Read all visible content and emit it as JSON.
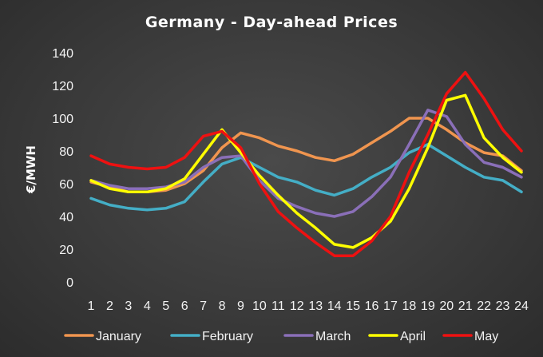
{
  "chart_data": {
    "type": "line",
    "title": "Germany - Day-ahead Prices",
    "ylabel": "€/MWH",
    "xlabel": "",
    "ylim": [
      0,
      140
    ],
    "yticks": [
      0,
      20,
      40,
      60,
      80,
      100,
      120,
      140
    ],
    "grid": false,
    "legend_position": "bottom",
    "categories": [
      "1",
      "2",
      "3",
      "4",
      "5",
      "6",
      "7",
      "8",
      "9",
      "10",
      "11",
      "12",
      "13",
      "14",
      "15",
      "16",
      "17",
      "18",
      "19",
      "20",
      "21",
      "22",
      "23",
      "24"
    ],
    "series": [
      {
        "name": "January",
        "color": "#f0954f",
        "values": [
          61,
          58,
          55,
          55,
          56,
          60,
          68,
          82,
          91,
          88,
          83,
          80,
          76,
          74,
          78,
          85,
          92,
          100,
          100,
          93,
          85,
          79,
          77,
          68
        ]
      },
      {
        "name": "February",
        "color": "#44aec6",
        "values": [
          51,
          47,
          45,
          44,
          45,
          49,
          61,
          72,
          76,
          70,
          64,
          61,
          56,
          53,
          57,
          64,
          70,
          79,
          84,
          77,
          70,
          64,
          62,
          55
        ]
      },
      {
        "name": "March",
        "color": "#8a6fb8",
        "values": [
          62,
          59,
          57,
          57,
          58,
          61,
          70,
          76,
          77,
          62,
          51,
          46,
          42,
          40,
          43,
          52,
          64,
          84,
          105,
          101,
          84,
          73,
          70,
          64
        ]
      },
      {
        "name": "April",
        "color": "#ffff00",
        "values": [
          62,
          57,
          55,
          55,
          57,
          63,
          78,
          93,
          79,
          65,
          53,
          42,
          33,
          23,
          21,
          27,
          37,
          57,
          82,
          111,
          114,
          88,
          76,
          67
        ]
      },
      {
        "name": "May",
        "color": "#ee1111",
        "values": [
          77,
          72,
          70,
          69,
          70,
          76,
          89,
          92,
          82,
          60,
          43,
          33,
          24,
          16,
          16,
          25,
          40,
          67,
          90,
          115,
          128,
          112,
          93,
          80
        ]
      }
    ]
  }
}
